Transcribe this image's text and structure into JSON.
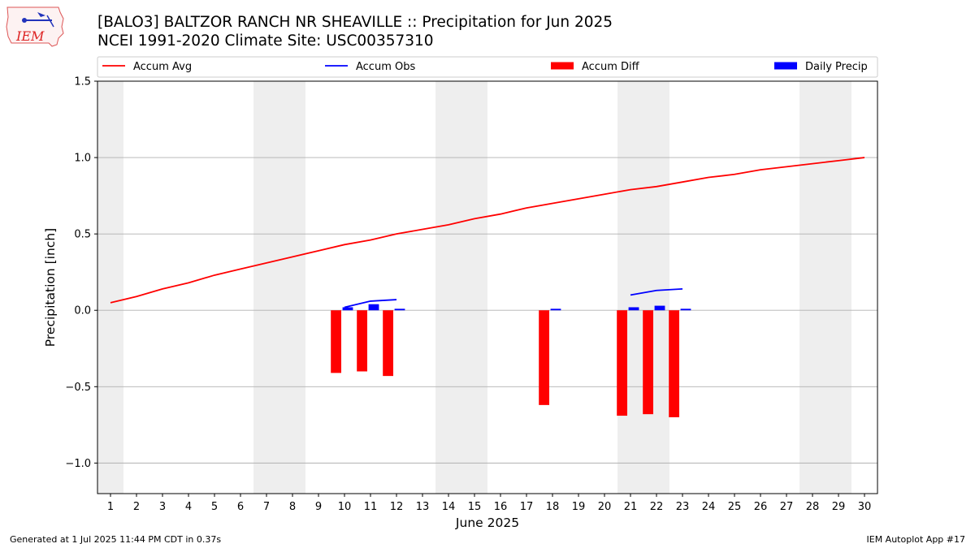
{
  "header": {
    "title_line1": "[BALO3] BALTZOR RANCH NR SHEAVILLE :: Precipitation for Jun 2025",
    "title_line2": "NCEI 1991-2020 Climate Site: USC00357310",
    "logo_text": "IEM"
  },
  "footer": {
    "left": "Generated at 1 Jul 2025 11:44 PM CDT in 0.37s",
    "right": "IEM Autoplot App #17"
  },
  "chart_data": {
    "type": "bar",
    "xlabel": "June 2025",
    "ylabel": "Precipitation [inch]",
    "xlim": [
      0.5,
      30.5
    ],
    "ylim": [
      -1.2,
      1.5
    ],
    "yticks": [
      -1.0,
      -0.5,
      0.0,
      0.5,
      1.0,
      1.5
    ],
    "ytick_labels": [
      "−1.0",
      "−0.5",
      "0.0",
      "0.5",
      "1.0",
      "1.5"
    ],
    "x_days": [
      1,
      2,
      3,
      4,
      5,
      6,
      7,
      8,
      9,
      10,
      11,
      12,
      13,
      14,
      15,
      16,
      17,
      18,
      19,
      20,
      21,
      22,
      23,
      24,
      25,
      26,
      27,
      28,
      29,
      30
    ],
    "grid": "horizontal",
    "legend_position": "top",
    "weekend_shading": [
      [
        0.5,
        1.5
      ],
      [
        6.5,
        8.5
      ],
      [
        13.5,
        15.5
      ],
      [
        20.5,
        22.5
      ],
      [
        27.5,
        29.5
      ]
    ],
    "weekend_color": "#eeeeee",
    "series": [
      {
        "name": "Accum Avg",
        "kind": "line",
        "color": "#ff0000",
        "x": [
          1,
          2,
          3,
          4,
          5,
          6,
          7,
          8,
          9,
          10,
          11,
          12,
          13,
          14,
          15,
          16,
          17,
          18,
          19,
          20,
          21,
          22,
          23,
          24,
          25,
          26,
          27,
          28,
          29,
          30
        ],
        "values": [
          0.05,
          0.09,
          0.14,
          0.18,
          0.23,
          0.27,
          0.31,
          0.35,
          0.39,
          0.43,
          0.46,
          0.5,
          0.53,
          0.56,
          0.6,
          0.63,
          0.67,
          0.7,
          0.73,
          0.76,
          0.79,
          0.81,
          0.84,
          0.87,
          0.89,
          0.92,
          0.94,
          0.96,
          0.98,
          1.0
        ]
      },
      {
        "name": "Accum Obs",
        "kind": "line",
        "color": "#0000ff",
        "segments": [
          {
            "x": [
              10,
              11,
              12
            ],
            "values": [
              0.02,
              0.06,
              0.07
            ]
          },
          {
            "x": [
              21,
              22,
              23
            ],
            "values": [
              0.1,
              0.13,
              0.14
            ]
          }
        ]
      },
      {
        "name": "Accum Diff",
        "kind": "bar",
        "color": "#ff0000",
        "x": [
          10,
          11,
          12,
          18,
          21,
          22,
          23
        ],
        "values": [
          -0.41,
          -0.4,
          -0.43,
          -0.62,
          -0.69,
          -0.68,
          -0.7
        ]
      },
      {
        "name": "Daily Precip",
        "kind": "bar",
        "color": "#0000ff",
        "x": [
          10,
          11,
          12,
          18,
          21,
          22,
          23
        ],
        "values": [
          0.02,
          0.04,
          0.01,
          0.01,
          0.02,
          0.03,
          0.01
        ]
      }
    ]
  }
}
